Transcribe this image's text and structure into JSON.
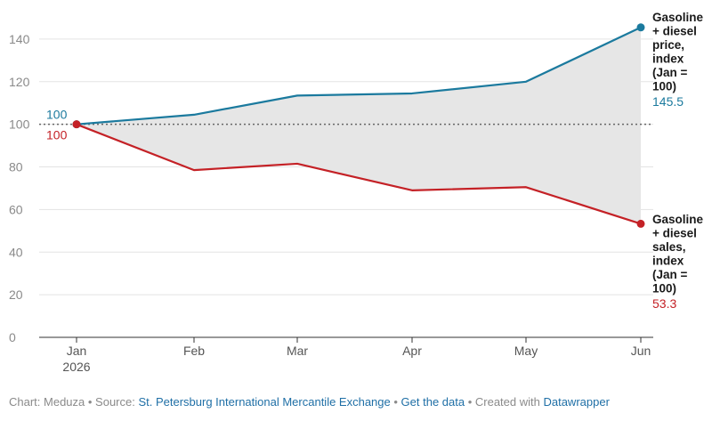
{
  "chart_data": {
    "type": "line",
    "categories": [
      "Jan 2026",
      "Feb",
      "Mar",
      "Apr",
      "May",
      "Jun"
    ],
    "x_tick_labels": [
      [
        "Jan",
        "2026"
      ],
      [
        "Feb"
      ],
      [
        "Mar"
      ],
      [
        "Apr"
      ],
      [
        "May"
      ],
      [
        "Jun"
      ]
    ],
    "ylim": [
      0,
      150
    ],
    "yticks": [
      0,
      20,
      40,
      60,
      80,
      100,
      120,
      140
    ],
    "grid": true,
    "reference_line": 100,
    "area_between_series": true,
    "series": [
      {
        "key": "price",
        "name": "Gasoline + diesel price, index (Jan = 100)",
        "name_lines": [
          "Gasoline",
          "+ diesel",
          "price,",
          "index",
          "(Jan =",
          "100)"
        ],
        "values": [
          100,
          104.5,
          113.5,
          114.5,
          120,
          145.5
        ],
        "start_label": "100",
        "end_label": "145.5",
        "color": "#1b7a9e"
      },
      {
        "key": "sales",
        "name": "Gasoline + diesel sales, index (Jan = 100)",
        "name_lines": [
          "Gasoline",
          "+ diesel",
          "sales,",
          "index",
          "(Jan =",
          "100)"
        ],
        "values": [
          100,
          78.5,
          81.5,
          69,
          70.5,
          53.3
        ],
        "start_label": "100",
        "end_label": "53.3",
        "color": "#c42126"
      }
    ],
    "area_color": "#e6e6e6",
    "grid_color": "#e3e3e3"
  },
  "footer": {
    "chart_prefix": "Chart: Meduza",
    "sep1": " • Source: ",
    "source_link": "St. Petersburg International Mercantile Exchange",
    "sep2": " • ",
    "data_link": "Get the data",
    "sep3": " • Created with ",
    "tool_link": "Datawrapper"
  }
}
